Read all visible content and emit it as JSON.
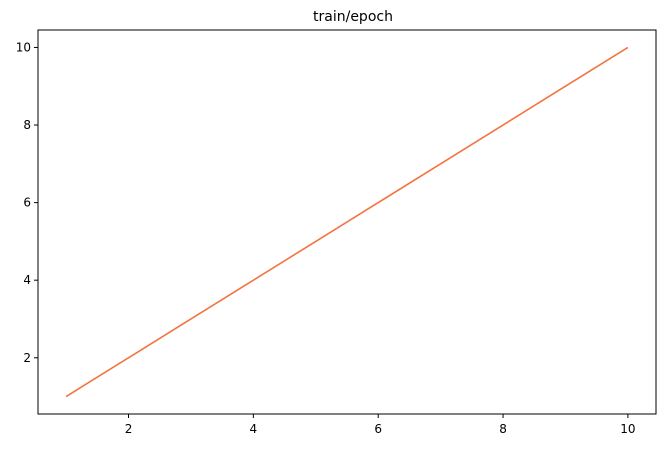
{
  "chart_data": {
    "type": "line",
    "title": "train/epoch",
    "xlabel": "",
    "ylabel": "",
    "xlim": [
      0.55,
      10.45
    ],
    "ylim": [
      0.55,
      10.45
    ],
    "xticks": [
      2,
      4,
      6,
      8,
      10
    ],
    "yticks": [
      2,
      4,
      6,
      8,
      10
    ],
    "grid": false,
    "series": [
      {
        "color": "#f4733f",
        "x": [
          1,
          2,
          3,
          4,
          5,
          6,
          7,
          8,
          9,
          10
        ],
        "y": [
          1,
          2,
          3,
          4,
          5,
          6,
          7,
          8,
          9,
          10
        ]
      }
    ]
  }
}
